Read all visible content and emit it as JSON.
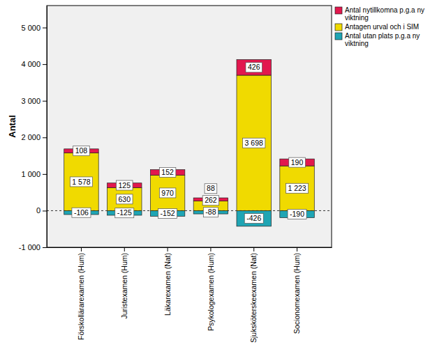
{
  "chart_data": {
    "type": "bar",
    "stacked": true,
    "data_labels": true,
    "grid": false,
    "legend": "right",
    "ylabel": "Antal",
    "categories": [
      "Förskollärarexamen (Hum)",
      "Juristexamen (Hum)",
      "Läkarexamen (Nat)",
      "Psykologexamen (Hum)",
      "Sjuksköterskeexamen (Nat)",
      "Socionomexamen (Hum)"
    ],
    "series": [
      {
        "name": "Antal nytillkomna p.g.a ny viktning",
        "color": "#e2184e",
        "values": [
          108,
          125,
          152,
          88,
          426,
          190
        ]
      },
      {
        "name": "Antagen urval och i SIM",
        "color": "#f0da00",
        "values": [
          1578,
          630,
          970,
          262,
          3698,
          1223
        ],
        "value_labels": [
          "1 578",
          "630",
          "970",
          "262",
          "3 698",
          "1 223"
        ]
      },
      {
        "name": "Antal utan plats p.g.a ny viktning",
        "color": "#1fa5b4",
        "values": [
          -106,
          -125,
          -152,
          -88,
          -426,
          -190
        ]
      }
    ],
    "ylim": [
      -1000,
      5600
    ],
    "yticks": [
      {
        "value": -1000,
        "label": "-1 000"
      },
      0,
      {
        "value": 1000,
        "label": "1 000"
      },
      {
        "value": 2000,
        "label": "2 000"
      },
      {
        "value": 3000,
        "label": "3 000"
      },
      {
        "value": 4000,
        "label": "4 000"
      },
      {
        "value": 5000,
        "label": "5 000"
      }
    ]
  }
}
